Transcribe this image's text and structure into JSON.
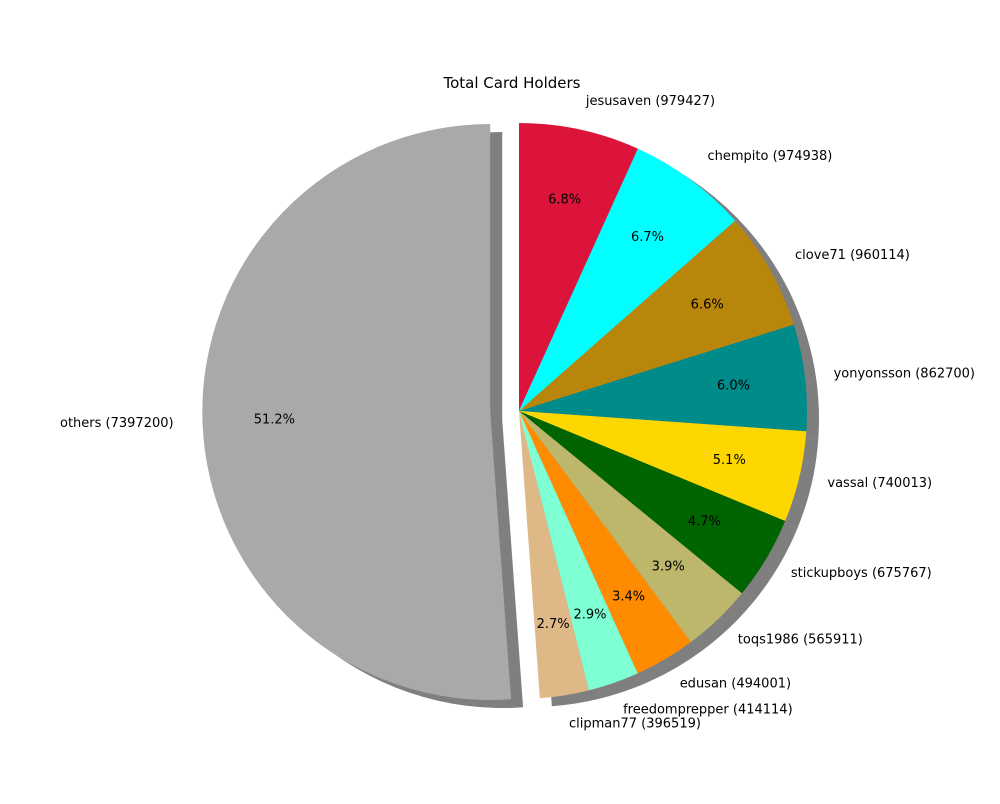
{
  "chart_data": {
    "type": "pie",
    "title": "Total Card Holders",
    "start_angle_deg": 90,
    "direction": "clockwise",
    "shadow": true,
    "exploded_slice": "others",
    "slices": [
      {
        "name": "jesusaven",
        "label": "jesusaven (979427)",
        "value": 979427,
        "pct_label": "6.8%",
        "color": "#DC143C"
      },
      {
        "name": "chempito",
        "label": "chempito (974938)",
        "value": 974938,
        "pct_label": "6.7%",
        "color": "#00FFFF"
      },
      {
        "name": "clove71",
        "label": "clove71 (960114)",
        "value": 960114,
        "pct_label": "6.6%",
        "color": "#B8860B"
      },
      {
        "name": "yonyonsson",
        "label": "yonyonsson (862700)",
        "value": 862700,
        "pct_label": "6.0%",
        "color": "#008B8B"
      },
      {
        "name": "vassal",
        "label": "vassal (740013)",
        "value": 740013,
        "pct_label": "5.1%",
        "color": "#FFD700"
      },
      {
        "name": "stickupboys",
        "label": "stickupboys (675767)",
        "value": 675767,
        "pct_label": "4.7%",
        "color": "#006400"
      },
      {
        "name": "toqs1986",
        "label": "toqs1986 (565911)",
        "value": 565911,
        "pct_label": "3.9%",
        "color": "#BDB76B"
      },
      {
        "name": "edusan",
        "label": "edusan (494001)",
        "value": 494001,
        "pct_label": "3.4%",
        "color": "#FF8C00"
      },
      {
        "name": "freedomprepper",
        "label": "freedomprepper (414114)",
        "value": 414114,
        "pct_label": "2.9%",
        "color": "#7FFFD4"
      },
      {
        "name": "clipman77",
        "label": "clipman77 (396519)",
        "value": 396519,
        "pct_label": "2.7%",
        "color": "#DEB887"
      },
      {
        "name": "others",
        "label": "others (7397200)",
        "value": 7397200,
        "pct_label": "51.2%",
        "color": "#A9A9A9"
      }
    ]
  }
}
